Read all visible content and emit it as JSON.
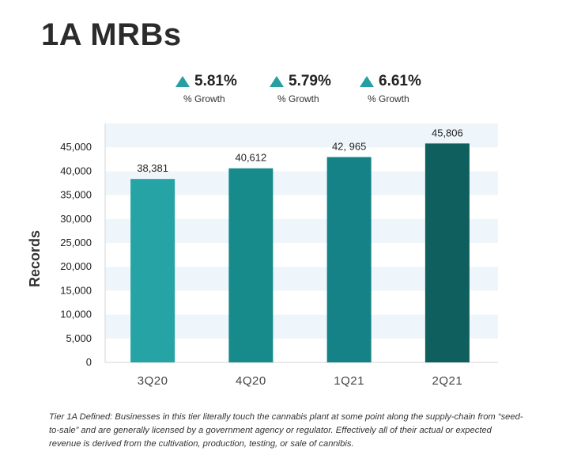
{
  "title": "1A MRBs",
  "growth": [
    {
      "value": "5.81%",
      "label": "% Growth",
      "icon": "triangle-up-icon",
      "color": "#24a0a3"
    },
    {
      "value": "5.79%",
      "label": "% Growth",
      "icon": "triangle-up-icon",
      "color": "#24a0a3"
    },
    {
      "value": "6.61%",
      "label": "% Growth",
      "icon": "triangle-up-icon",
      "color": "#24a0a3"
    }
  ],
  "chart_data": {
    "type": "bar",
    "categories": [
      "3Q20",
      "4Q20",
      "1Q21",
      "2Q21"
    ],
    "values": [
      38381,
      40612,
      42965,
      45806
    ],
    "data_labels": [
      "38,381",
      "40,612",
      "42, 965",
      "45,806"
    ],
    "bar_colors": [
      "#25a3a5",
      "#178a8c",
      "#148286",
      "#0e5f5d"
    ],
    "xlabel": "",
    "ylabel": "Records",
    "ylim": [
      0,
      50000
    ],
    "yticks": [
      0,
      5000,
      10000,
      15000,
      20000,
      25000,
      30000,
      35000,
      40000,
      45000
    ],
    "ytick_labels": [
      "0",
      "5,000",
      "10,000",
      "15,000",
      "20,000",
      "25,000",
      "30,000",
      "35,000",
      "40,000",
      "45,000"
    ],
    "grid": "alternating horizontal bands",
    "band_color": "#eef6fb",
    "legend": "none"
  },
  "footnote": "Tier 1A Defined: Businesses in this tier literally touch the cannabis plant at some point along the supply-chain from “seed-to-sale” and are generally licensed by a government agency or regulator. Effectively all of their actual or expected revenue is derived from the cultivation, production, testing, or sale of cannibis."
}
